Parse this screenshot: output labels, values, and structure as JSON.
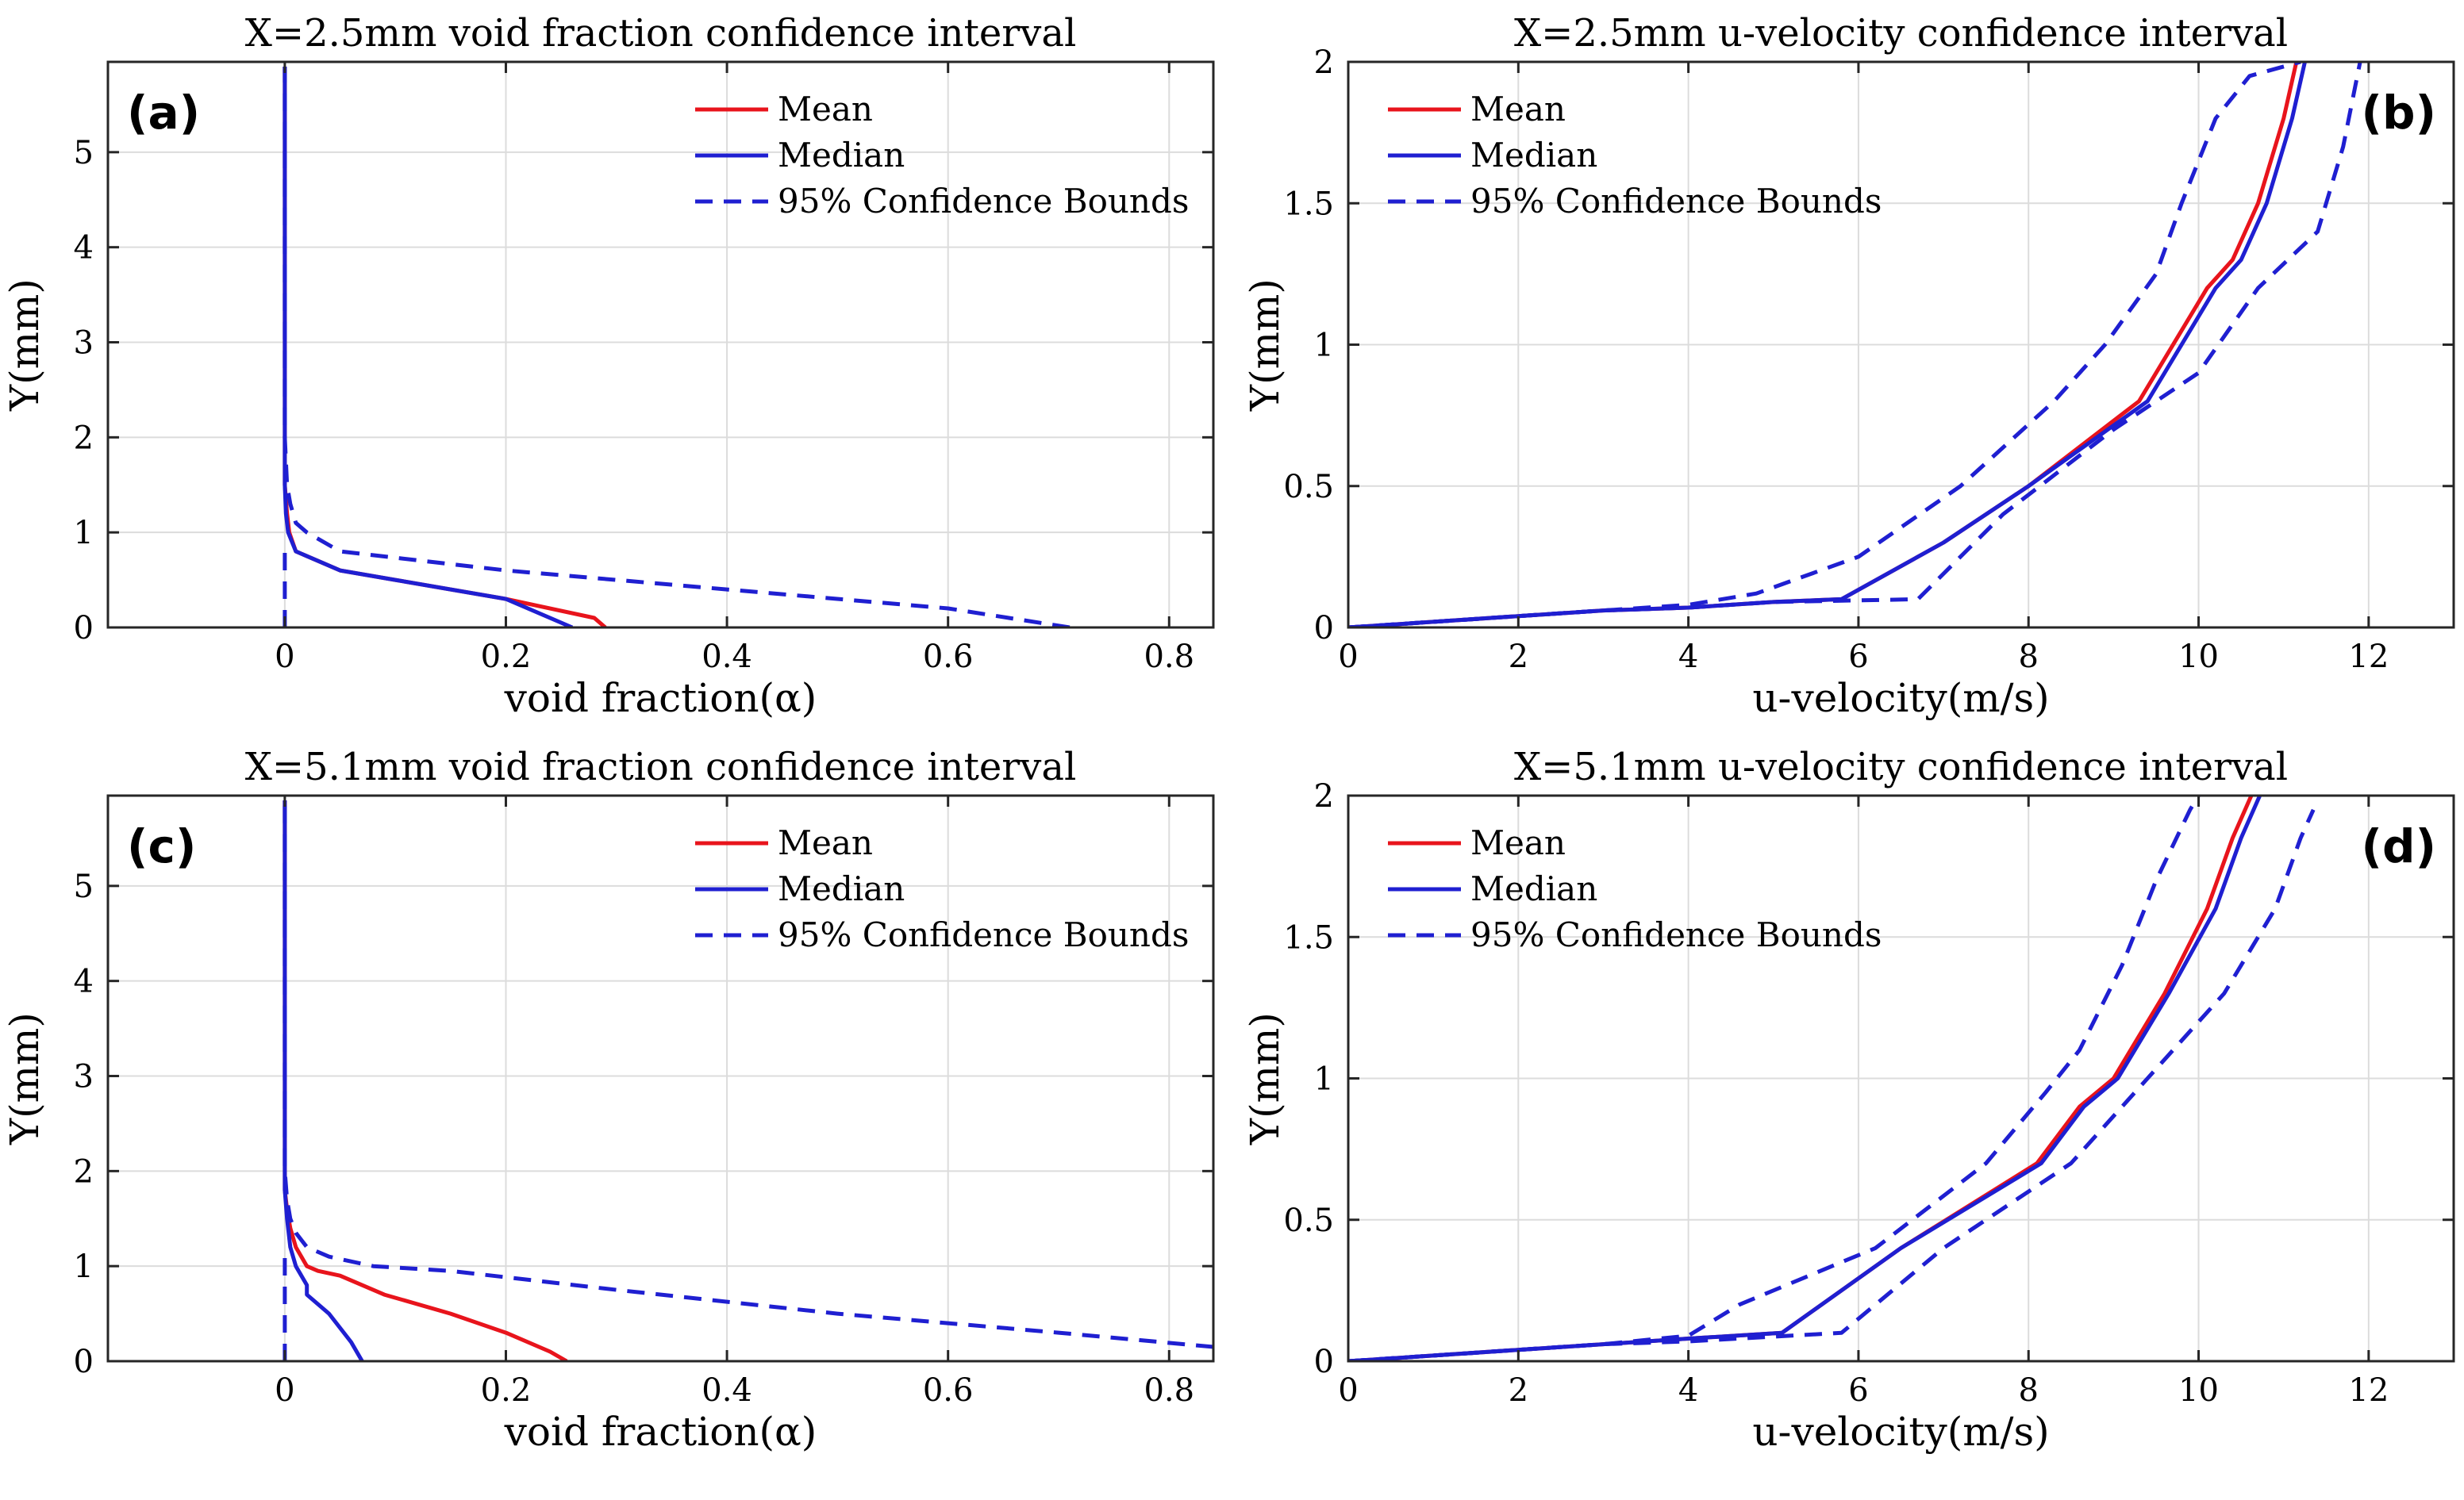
{
  "chart_data": [
    {
      "type": "line",
      "panel_label": "(a)",
      "title": "X=2.5mm void fraction confidence interval",
      "xlabel": "void fraction(α)",
      "ylabel": "Y(mm)",
      "xlim": [
        -0.16,
        0.84
      ],
      "ylim": [
        0,
        5.95
      ],
      "xticks": [
        0,
        0.2,
        0.4,
        0.6,
        0.8
      ],
      "xtick_labels": [
        "0",
        "0.2",
        "0.4",
        "0.6",
        "0.8"
      ],
      "yticks": [
        0,
        1,
        2,
        3,
        4,
        5
      ],
      "ytick_labels": [
        "0",
        "1",
        "2",
        "3",
        "4",
        "5"
      ],
      "legend": {
        "position": "top-right",
        "entries": [
          "Mean",
          "Median",
          "95% Confidence Bounds"
        ]
      },
      "grid": true,
      "series": [
        {
          "name": "Mean",
          "color": "#e8141c",
          "dash": "solid",
          "x": [
            0.29,
            0.28,
            0.2,
            0.1,
            0.05,
            0.01,
            0.004,
            0.002,
            0,
            0
          ],
          "y": [
            0,
            0.1,
            0.3,
            0.5,
            0.6,
            0.8,
            1.0,
            1.2,
            1.5,
            5.9
          ]
        },
        {
          "name": "Median",
          "color": "#1f1fd1",
          "dash": "solid",
          "x": [
            0.26,
            0.2,
            0.1,
            0.05,
            0.01,
            0.003,
            0.001,
            0,
            0
          ],
          "y": [
            0,
            0.3,
            0.5,
            0.6,
            0.8,
            1.0,
            1.2,
            1.5,
            5.9
          ]
        },
        {
          "name": "95% Confidence Bounds",
          "color": "#1f1fd1",
          "dash": "dashed",
          "x": [
            0.71,
            0.6,
            0.4,
            0.2,
            0.05,
            0.02,
            0.01,
            0.005,
            0.002,
            0,
            0
          ],
          "y": [
            0,
            0.2,
            0.4,
            0.6,
            0.8,
            1.0,
            1.1,
            1.3,
            1.5,
            2.0,
            5.9
          ]
        },
        {
          "name": "95% Confidence Bounds (lower)",
          "color": "#1f1fd1",
          "dash": "dashed",
          "x": [
            0,
            0
          ],
          "y": [
            0,
            0.8
          ]
        }
      ]
    },
    {
      "type": "line",
      "panel_label": "(b)",
      "title": "X=2.5mm u-velocity confidence interval",
      "xlabel": "u-velocity(m/s)",
      "ylabel": "Y(mm)",
      "xlim": [
        0,
        13
      ],
      "ylim": [
        0,
        2
      ],
      "xticks": [
        0,
        2,
        4,
        6,
        8,
        10,
        12
      ],
      "xtick_labels": [
        "0",
        "2",
        "4",
        "6",
        "8",
        "10",
        "12"
      ],
      "yticks": [
        0,
        0.5,
        1,
        1.5,
        2
      ],
      "ytick_labels": [
        "0",
        "0.5",
        "1",
        "1.5",
        "2"
      ],
      "legend": {
        "position": "top-left",
        "entries": [
          "Mean",
          "Median",
          "95% Confidence Bounds"
        ]
      },
      "grid": true,
      "series": [
        {
          "name": "Mean",
          "color": "#e8141c",
          "dash": "solid",
          "x": [
            0,
            1,
            2,
            3,
            4,
            5,
            5.8,
            7,
            8,
            9.3,
            10.1,
            10.4,
            10.7,
            11.0,
            11.15
          ],
          "y": [
            0,
            0.02,
            0.04,
            0.06,
            0.07,
            0.09,
            0.1,
            0.3,
            0.5,
            0.8,
            1.2,
            1.3,
            1.5,
            1.8,
            2.0
          ]
        },
        {
          "name": "Median",
          "color": "#1f1fd1",
          "dash": "solid",
          "x": [
            0,
            1,
            2,
            3,
            4,
            5,
            5.8,
            7,
            8,
            9.4,
            10.2,
            10.5,
            10.8,
            11.1,
            11.25
          ],
          "y": [
            0,
            0.02,
            0.04,
            0.06,
            0.07,
            0.09,
            0.1,
            0.3,
            0.5,
            0.8,
            1.2,
            1.3,
            1.5,
            1.8,
            2.0
          ]
        },
        {
          "name": "95% Confidence Bounds",
          "color": "#1f1fd1",
          "dash": "dashed",
          "x": [
            0,
            1,
            2,
            3,
            4,
            4.8,
            6,
            7.2,
            8.3,
            8.9,
            9.5,
            9.8,
            10.2,
            10.6,
            11.2
          ],
          "y": [
            0,
            0.02,
            0.04,
            0.06,
            0.08,
            0.12,
            0.25,
            0.5,
            0.8,
            1.0,
            1.25,
            1.5,
            1.8,
            1.95,
            2.0
          ]
        },
        {
          "name": "95% Confidence Bounds (lower)",
          "color": "#1f1fd1",
          "dash": "dashed",
          "x": [
            0,
            1,
            2,
            3,
            4,
            5,
            6.7,
            7.7,
            9.0,
            10.0,
            10.7,
            11.4,
            11.7,
            11.9
          ],
          "y": [
            0,
            0.02,
            0.04,
            0.06,
            0.07,
            0.09,
            0.1,
            0.4,
            0.7,
            0.9,
            1.2,
            1.4,
            1.7,
            2.0
          ]
        }
      ]
    },
    {
      "type": "line",
      "panel_label": "(c)",
      "title": "X=5.1mm void fraction confidence interval",
      "xlabel": "void fraction(α)",
      "ylabel": "Y(mm)",
      "xlim": [
        -0.16,
        0.84
      ],
      "ylim": [
        0,
        5.95
      ],
      "xticks": [
        0,
        0.2,
        0.4,
        0.6,
        0.8
      ],
      "xtick_labels": [
        "0",
        "0.2",
        "0.4",
        "0.6",
        "0.8"
      ],
      "yticks": [
        0,
        1,
        2,
        3,
        4,
        5
      ],
      "ytick_labels": [
        "0",
        "1",
        "2",
        "3",
        "4",
        "5"
      ],
      "legend": {
        "position": "top-right",
        "entries": [
          "Mean",
          "Median",
          "95% Confidence Bounds"
        ]
      },
      "grid": true,
      "series": [
        {
          "name": "Mean",
          "color": "#e8141c",
          "dash": "solid",
          "x": [
            0.255,
            0.24,
            0.2,
            0.15,
            0.09,
            0.05,
            0.03,
            0.02,
            0.01,
            0.005,
            0.002,
            0,
            0
          ],
          "y": [
            0,
            0.1,
            0.3,
            0.5,
            0.7,
            0.9,
            0.95,
            1.0,
            1.2,
            1.4,
            1.6,
            1.8,
            5.9
          ]
        },
        {
          "name": "Median",
          "color": "#1f1fd1",
          "dash": "solid",
          "x": [
            0.07,
            0.06,
            0.04,
            0.02,
            0.02,
            0.01,
            0.005,
            0.002,
            0,
            0
          ],
          "y": [
            0,
            0.2,
            0.5,
            0.7,
            0.8,
            1.0,
            1.2,
            1.5,
            1.8,
            5.9
          ]
        },
        {
          "name": "95% Confidence Bounds",
          "color": "#1f1fd1",
          "dash": "dashed",
          "x": [
            0.84,
            0.7,
            0.5,
            0.3,
            0.15,
            0.08,
            0.04,
            0.02,
            0.01,
            0.005,
            0.002,
            0,
            0
          ],
          "y": [
            0.15,
            0.3,
            0.5,
            0.75,
            0.95,
            1.0,
            1.1,
            1.2,
            1.35,
            1.5,
            1.7,
            2.0,
            5.9
          ]
        },
        {
          "name": "95% Confidence Bounds (lower)",
          "color": "#1f1fd1",
          "dash": "dashed",
          "x": [
            0,
            0
          ],
          "y": [
            0,
            1.2
          ]
        }
      ]
    },
    {
      "type": "line",
      "panel_label": "(d)",
      "title": "X=5.1mm u-velocity confidence interval",
      "xlabel": "u-velocity(m/s)",
      "ylabel": "Y(mm)",
      "xlim": [
        0,
        13
      ],
      "ylim": [
        0,
        2
      ],
      "xticks": [
        0,
        2,
        4,
        6,
        8,
        10,
        12
      ],
      "xtick_labels": [
        "0",
        "2",
        "4",
        "6",
        "8",
        "10",
        "12"
      ],
      "yticks": [
        0,
        0.5,
        1,
        1.5,
        2
      ],
      "ytick_labels": [
        "0",
        "0.5",
        "1",
        "1.5",
        "2"
      ],
      "legend": {
        "position": "top-left",
        "entries": [
          "Mean",
          "Median",
          "95% Confidence Bounds"
        ]
      },
      "grid": true,
      "series": [
        {
          "name": "Mean",
          "color": "#e8141c",
          "dash": "solid",
          "x": [
            0,
            1,
            2,
            3,
            4,
            5.1,
            6.5,
            8.1,
            8.6,
            9.0,
            9.6,
            10.1,
            10.4,
            10.62
          ],
          "y": [
            0,
            0.02,
            0.04,
            0.06,
            0.08,
            0.1,
            0.4,
            0.7,
            0.9,
            1.0,
            1.3,
            1.6,
            1.85,
            2.0
          ]
        },
        {
          "name": "Median",
          "color": "#1f1fd1",
          "dash": "solid",
          "x": [
            0,
            1,
            2,
            3,
            4,
            5.1,
            6.5,
            8.15,
            8.65,
            9.05,
            9.65,
            10.2,
            10.5,
            10.72
          ],
          "y": [
            0,
            0.02,
            0.04,
            0.06,
            0.08,
            0.1,
            0.4,
            0.7,
            0.9,
            1.0,
            1.3,
            1.6,
            1.85,
            2.0
          ]
        },
        {
          "name": "95% Confidence Bounds",
          "color": "#1f1fd1",
          "dash": "dashed",
          "x": [
            0,
            1,
            2,
            3,
            4,
            4.6,
            6.2,
            7.5,
            8.2,
            8.6,
            9.1,
            9.5,
            9.9,
            10.0
          ],
          "y": [
            0,
            0.02,
            0.04,
            0.06,
            0.09,
            0.2,
            0.4,
            0.7,
            0.95,
            1.1,
            1.4,
            1.7,
            1.95,
            2.0
          ]
        },
        {
          "name": "95% Confidence Bounds (lower)",
          "color": "#1f1fd1",
          "dash": "dashed",
          "x": [
            0,
            1,
            2,
            3,
            4,
            5.8,
            7.0,
            8.5,
            9.4,
            10.3,
            10.9,
            11.2,
            11.35
          ],
          "y": [
            0,
            0.02,
            0.04,
            0.06,
            0.07,
            0.1,
            0.4,
            0.7,
            1.0,
            1.3,
            1.6,
            1.85,
            1.95
          ]
        }
      ]
    }
  ]
}
